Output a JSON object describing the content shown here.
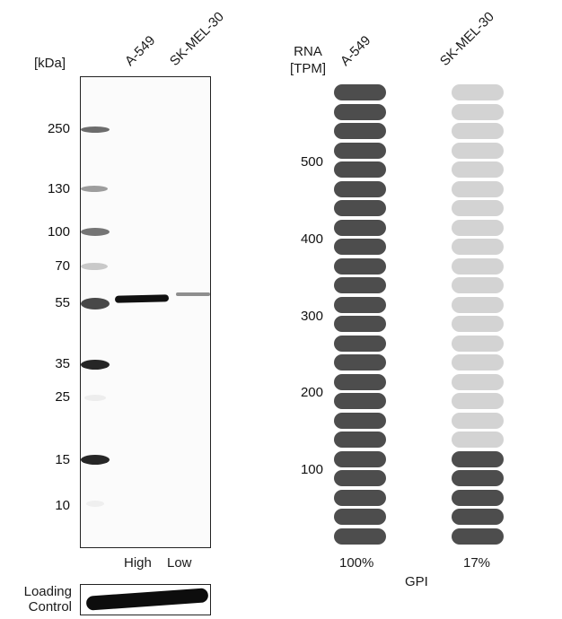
{
  "western_blot": {
    "unit_label": "[kDa]",
    "lanes": [
      "A-549",
      "SK-MEL-30"
    ],
    "lane_expression": [
      "High",
      "Low"
    ],
    "markers": [
      {
        "label": "250",
        "y": 145
      },
      {
        "label": "130",
        "y": 211
      },
      {
        "label": "100",
        "y": 259
      },
      {
        "label": "70",
        "y": 297
      },
      {
        "label": "55",
        "y": 338
      },
      {
        "label": "35",
        "y": 406
      },
      {
        "label": "25",
        "y": 443
      },
      {
        "label": "15",
        "y": 513
      },
      {
        "label": "10",
        "y": 564
      }
    ],
    "loading_control_label_line1": "Loading",
    "loading_control_label_line2": "Control"
  },
  "rna": {
    "axis_label_line1": "RNA",
    "axis_label_line2": "[TPM]",
    "gene": "GPI",
    "samples": [
      {
        "name": "A-549",
        "percent_label": "100%",
        "filled_segments": 24
      },
      {
        "name": "SK-MEL-30",
        "percent_label": "17%",
        "filled_segments": 5
      }
    ],
    "total_segments": 24,
    "ticks": [
      "500",
      "400",
      "300",
      "200",
      "100"
    ],
    "colors": {
      "filled": "#4d4d4d",
      "empty": "#d3d3d3"
    }
  },
  "chart_data": [
    {
      "type": "table",
      "title": "Western blot (GPI)",
      "ylabel": "[kDa]",
      "markers_kDa": [
        250,
        130,
        100,
        70,
        55,
        35,
        25,
        15,
        10
      ],
      "lanes": [
        "A-549",
        "SK-MEL-30"
      ],
      "band_kDa": 55,
      "band_intensity": [
        "High",
        "Low"
      ],
      "loading_control": "Loading Control"
    },
    {
      "type": "bar",
      "title": "GPI",
      "ylabel": "RNA [TPM]",
      "categories": [
        "A-549",
        "SK-MEL-30"
      ],
      "values_percent": [
        100,
        17
      ],
      "values_tpm_estimate": [
        600,
        102
      ],
      "yticks": [
        100,
        200,
        300,
        400,
        500
      ],
      "ylim": [
        0,
        600
      ],
      "segments_total": 24,
      "segments_filled": [
        24,
        5
      ],
      "grid": false
    }
  ]
}
